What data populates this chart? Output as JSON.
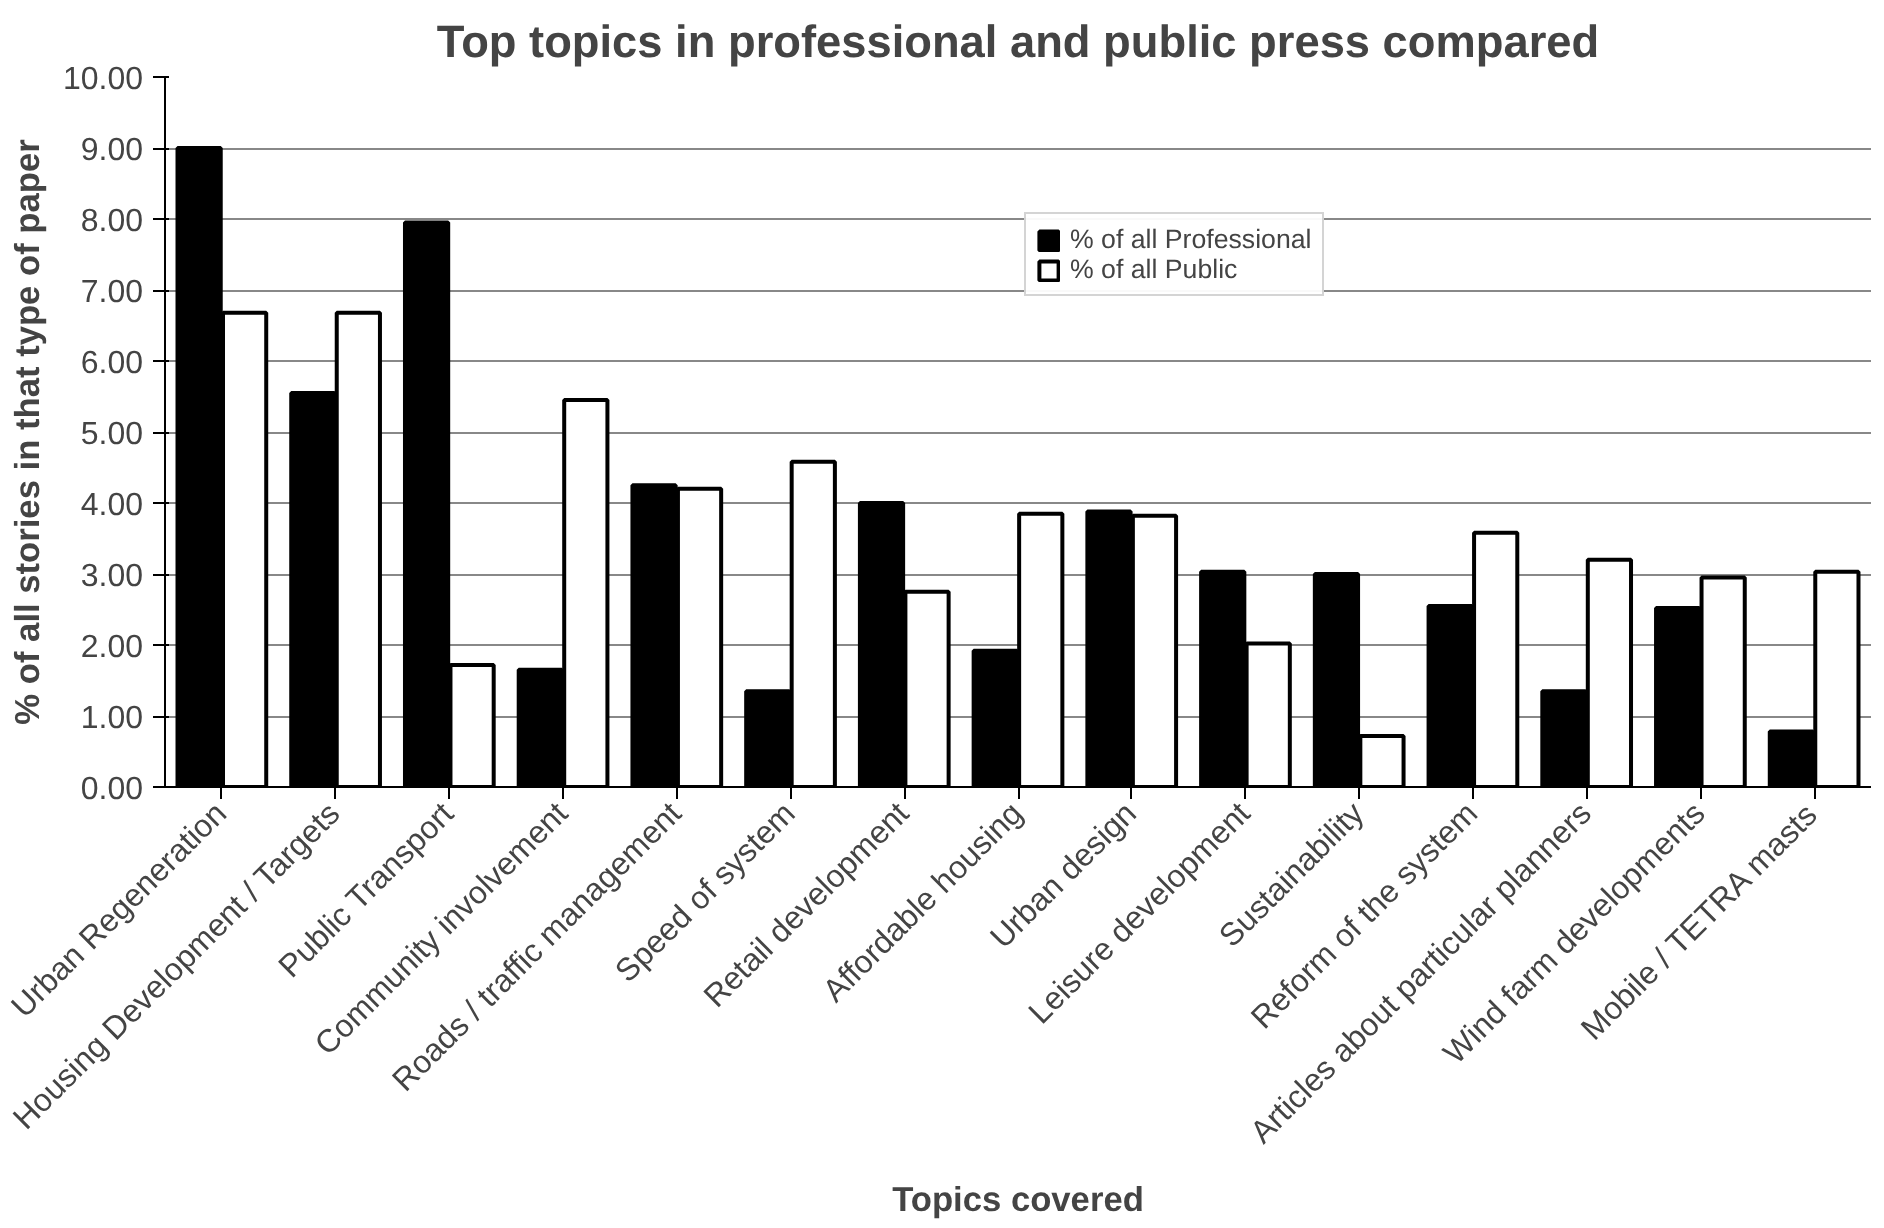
{
  "chart_data": {
    "type": "bar",
    "title": "Top topics in professional and public press compared",
    "xlabel": "Topics covered",
    "ylabel": "% of all stories in that type of paper",
    "categories": [
      "Urban Regeneration",
      "Housing Development / Targets",
      "Public Transport",
      "Community involvement",
      "Roads / traffic management",
      "Speed of system",
      "Retail development",
      "Affordable housing",
      "Urban design",
      "Leisure development",
      "Sustainability",
      "Reform of the system",
      "Articles about particular planners",
      "Wind farm developments",
      "Mobile / TETRA masts"
    ],
    "series": [
      {
        "name": "% of all Professional",
        "color": "#000000",
        "values": [
          9.0,
          5.55,
          7.95,
          1.65,
          4.25,
          1.35,
          4.0,
          1.92,
          3.88,
          3.03,
          3.0,
          2.55,
          1.35,
          2.52,
          0.78
        ]
      },
      {
        "name": "% of all Public",
        "color": "#ffffff",
        "values": [
          6.68,
          6.68,
          1.72,
          5.45,
          4.2,
          4.58,
          2.75,
          3.85,
          3.82,
          2.02,
          0.72,
          3.58,
          3.2,
          2.95,
          3.03
        ]
      }
    ],
    "ylim": [
      0,
      10
    ],
    "yticks": [
      {
        "value": 0,
        "label": "0.00"
      },
      {
        "value": 1,
        "label": "1.00"
      },
      {
        "value": 2,
        "label": "2.00"
      },
      {
        "value": 3,
        "label": "3.00"
      },
      {
        "value": 4,
        "label": "4.00"
      },
      {
        "value": 5,
        "label": "5.00"
      },
      {
        "value": 6,
        "label": "6.00"
      },
      {
        "value": 7,
        "label": "7.00"
      },
      {
        "value": 8,
        "label": "8.00"
      },
      {
        "value": 9,
        "label": "9.00"
      },
      {
        "value": 10,
        "label": "10.00"
      }
    ],
    "grid": "y",
    "legend": "top right"
  }
}
